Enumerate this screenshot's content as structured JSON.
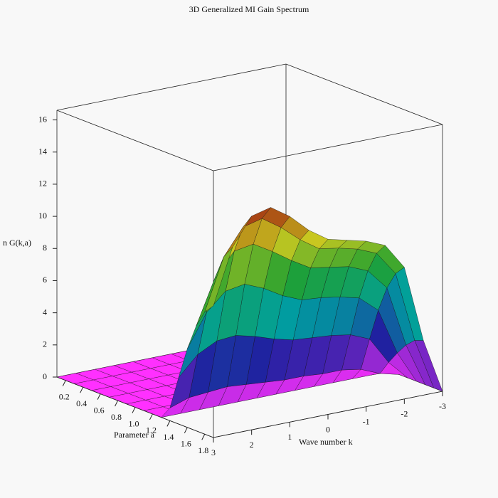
{
  "chart_data": {
    "type": "surface",
    "title": "3D Generalized MI Gain Spectrum",
    "xlabel": "Wave number k",
    "ylabel": "Parameter a",
    "zlabel": "n G(k,a)",
    "x": [
      -3,
      -2.5,
      -2,
      -1.5,
      -1,
      -0.5,
      0,
      0.5,
      1,
      1.5,
      2,
      2.5,
      3
    ],
    "y": [
      0.1,
      0.3,
      0.5,
      0.7,
      0.9,
      1.1,
      1.3,
      1.4,
      1.5,
      1.6,
      1.7,
      1.8,
      1.9
    ],
    "z": [
      [
        0,
        0,
        0,
        0,
        0,
        0,
        0,
        0,
        0,
        0,
        0,
        0,
        0
      ],
      [
        0,
        0,
        0,
        0,
        0,
        0,
        0,
        0,
        0,
        0,
        0,
        0,
        0
      ],
      [
        0,
        0,
        0,
        0,
        0,
        0,
        0,
        0,
        0,
        0,
        0,
        0,
        0
      ],
      [
        0,
        0,
        0,
        0,
        0,
        0,
        0,
        0,
        0,
        0,
        0,
        0,
        0
      ],
      [
        0,
        0,
        0,
        0,
        0,
        0,
        0,
        0,
        0,
        0,
        0,
        0,
        0
      ],
      [
        0,
        0,
        0,
        0,
        0,
        0,
        0,
        0,
        0,
        0,
        0,
        0,
        0
      ],
      [
        0,
        0,
        0,
        0,
        0,
        0,
        0,
        0,
        0,
        0,
        0,
        0,
        0
      ],
      [
        0,
        0.3,
        0.8,
        1.0,
        1.0,
        1.1,
        1.1,
        1.2,
        1.3,
        1.4,
        1.3,
        1.2,
        0.8
      ],
      [
        0,
        1.2,
        2.9,
        3.4,
        3.6,
        3.7,
        3.8,
        4.1,
        4.5,
        4.8,
        4.7,
        4.1,
        2.9
      ],
      [
        0,
        2.0,
        4.9,
        5.9,
        6.2,
        6.4,
        6.5,
        7.0,
        7.7,
        8.2,
        8.0,
        6.9,
        4.9
      ],
      [
        0,
        2.7,
        6.5,
        7.8,
        8.3,
        8.5,
        8.7,
        9.4,
        10.2,
        10.9,
        10.7,
        9.3,
        6.5
      ],
      [
        0,
        3.2,
        7.6,
        9.1,
        9.6,
        9.9,
        10.1,
        10.9,
        11.9,
        12.7,
        12.4,
        10.8,
        7.6
      ],
      [
        0,
        3.4,
        8.2,
        9.8,
        10.3,
        10.6,
        10.9,
        11.7,
        12.8,
        13.6,
        13.3,
        11.6,
        8.2
      ]
    ],
    "xlim": [
      -3,
      3
    ],
    "ylim": [
      0.1,
      1.9
    ],
    "zlim": [
      0,
      16.6
    ],
    "xticks": [
      -3,
      -2,
      -1,
      0,
      1,
      2,
      3
    ],
    "yticks": [
      0.2,
      0.4,
      0.6,
      0.8,
      {
        "value": 1,
        "label": "1.0"
      },
      1.2,
      1.4,
      1.6,
      1.8
    ],
    "zticks": [
      0,
      2,
      4,
      6,
      8,
      10,
      12,
      14,
      16
    ],
    "colormap": [
      "#ff30ff",
      "#2020a0",
      "#00a0a0",
      "#20a030",
      "#c8c820",
      "#a02010"
    ]
  }
}
